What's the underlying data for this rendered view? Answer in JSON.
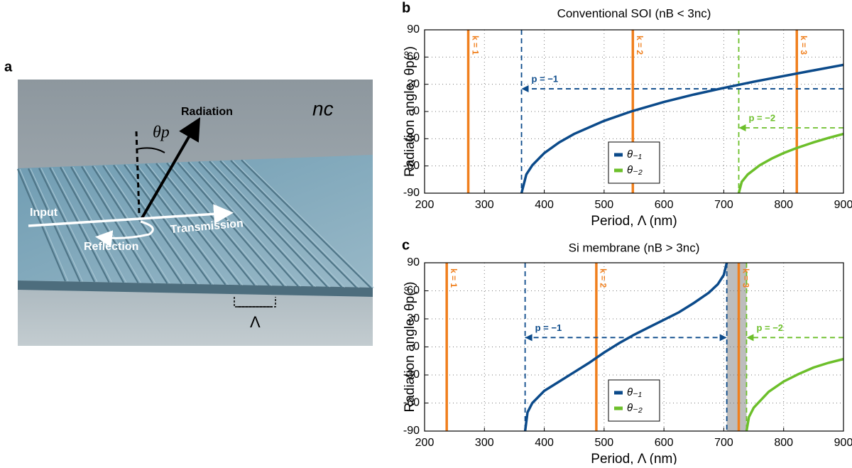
{
  "panel_labels": [
    "a",
    "b",
    "c"
  ],
  "illustration": {
    "radiation": "Radiation",
    "angle": "θp",
    "cladding": "nc",
    "input": "Input",
    "reflection": "Reflection",
    "transmission": "Transmission",
    "period": "Λ"
  },
  "chart_data": [
    {
      "type": "line",
      "title": "Conventional SOI (nB < 3nc)",
      "xlabel": "Period, Λ (nm)",
      "ylabel": "Radiation angle, θp(°)",
      "xlim": [
        200,
        900
      ],
      "ylim": [
        -90,
        90
      ],
      "xticks": [
        200,
        300,
        400,
        500,
        600,
        700,
        800,
        900
      ],
      "yticks": [
        -90,
        -60,
        -30,
        0,
        30,
        60,
        90
      ],
      "grid": true,
      "legend": "lower center",
      "series": [
        {
          "name": "θ₋₁",
          "color": "#0b4a8a",
          "x": [
            362,
            370,
            380,
            400,
            425,
            450,
            500,
            545,
            600,
            650,
            700,
            750,
            800,
            850,
            900
          ],
          "values": [
            -90,
            -69.4,
            -59.3,
            -45.8,
            -34.0,
            -24.7,
            -10.3,
            0,
            10.5,
            18.7,
            26.0,
            32.8,
            39.1,
            45.3,
            51.4
          ]
        },
        {
          "name": "θ₋₂",
          "color": "#6cbf2a",
          "x": [
            725,
            730,
            740,
            760,
            780,
            800,
            820,
            850,
            875,
            900
          ],
          "values": [
            -90,
            -77.5,
            -69.4,
            -59.3,
            -51.9,
            -45.8,
            -40.7,
            -34.0,
            -29.1,
            -24.7
          ]
        }
      ],
      "order_line_color": "#f07f1d",
      "order_lines": [
        {
          "x": 273,
          "label": "k = 1"
        },
        {
          "x": 548,
          "label": "k = 2"
        },
        {
          "x": 822,
          "label": "k = 3"
        }
      ],
      "cutoffs": [
        {
          "x": 362,
          "color": "#0b4a8a"
        },
        {
          "x": 725,
          "color": "#6cbf2a"
        }
      ],
      "arrows": [
        {
          "label": "p = −1",
          "y": 25,
          "x": [
            900,
            362
          ],
          "color": "#0b4a8a",
          "heads": "end"
        },
        {
          "label": "p = −2",
          "y": -18,
          "x": [
            900,
            725
          ],
          "color": "#6cbf2a",
          "heads": "end"
        }
      ]
    },
    {
      "type": "line",
      "title": "Si membrane (nB > 3nc)",
      "xlabel": "Period, Λ (nm)",
      "ylabel": "Radiation angle, θp(°)",
      "xlim": [
        200,
        900
      ],
      "ylim": [
        -90,
        90
      ],
      "xticks": [
        200,
        300,
        400,
        500,
        600,
        700,
        800,
        900
      ],
      "yticks": [
        -90,
        -60,
        -30,
        0,
        30,
        60,
        90
      ],
      "grid": true,
      "legend": "lower center",
      "series": [
        {
          "name": "θ₋₁",
          "color": "#0b4a8a",
          "x": [
            368,
            372,
            380,
            400,
            425,
            450,
            475,
            500,
            525,
            550,
            575,
            600,
            625,
            650,
            675,
            690,
            700,
            705
          ],
          "values": [
            -90,
            -70,
            -60,
            -47,
            -37,
            -27,
            -17,
            -6,
            4,
            13,
            21,
            29,
            37,
            47,
            58,
            67,
            77,
            90
          ]
        },
        {
          "name": "θ₋₂",
          "color": "#6cbf2a",
          "x": [
            738,
            742,
            750,
            775,
            800,
            825,
            850,
            875,
            900
          ],
          "values": [
            -90,
            -75,
            -65,
            -48,
            -37,
            -29,
            -22,
            -17,
            -13
          ]
        }
      ],
      "order_line_color": "#f07f1d",
      "order_lines": [
        {
          "x": 237,
          "label": "k = 1"
        },
        {
          "x": 487,
          "label": "k = 2"
        },
        {
          "x": 725,
          "label": "k = 3"
        }
      ],
      "band": [
        705,
        738
      ],
      "band_color": "#bdbdbd",
      "cutoffs": [
        {
          "x": 368,
          "color": "#0b4a8a"
        },
        {
          "x": 705,
          "color": "#0b4a8a"
        },
        {
          "x": 738,
          "color": "#6cbf2a"
        }
      ],
      "arrows": [
        {
          "label": "p = −1",
          "y": 10,
          "x": [
            368,
            705
          ],
          "color": "#0b4a8a",
          "heads": "both"
        },
        {
          "label": "p = −2",
          "y": 10,
          "x": [
            900,
            738
          ],
          "color": "#6cbf2a",
          "heads": "end"
        }
      ]
    }
  ]
}
